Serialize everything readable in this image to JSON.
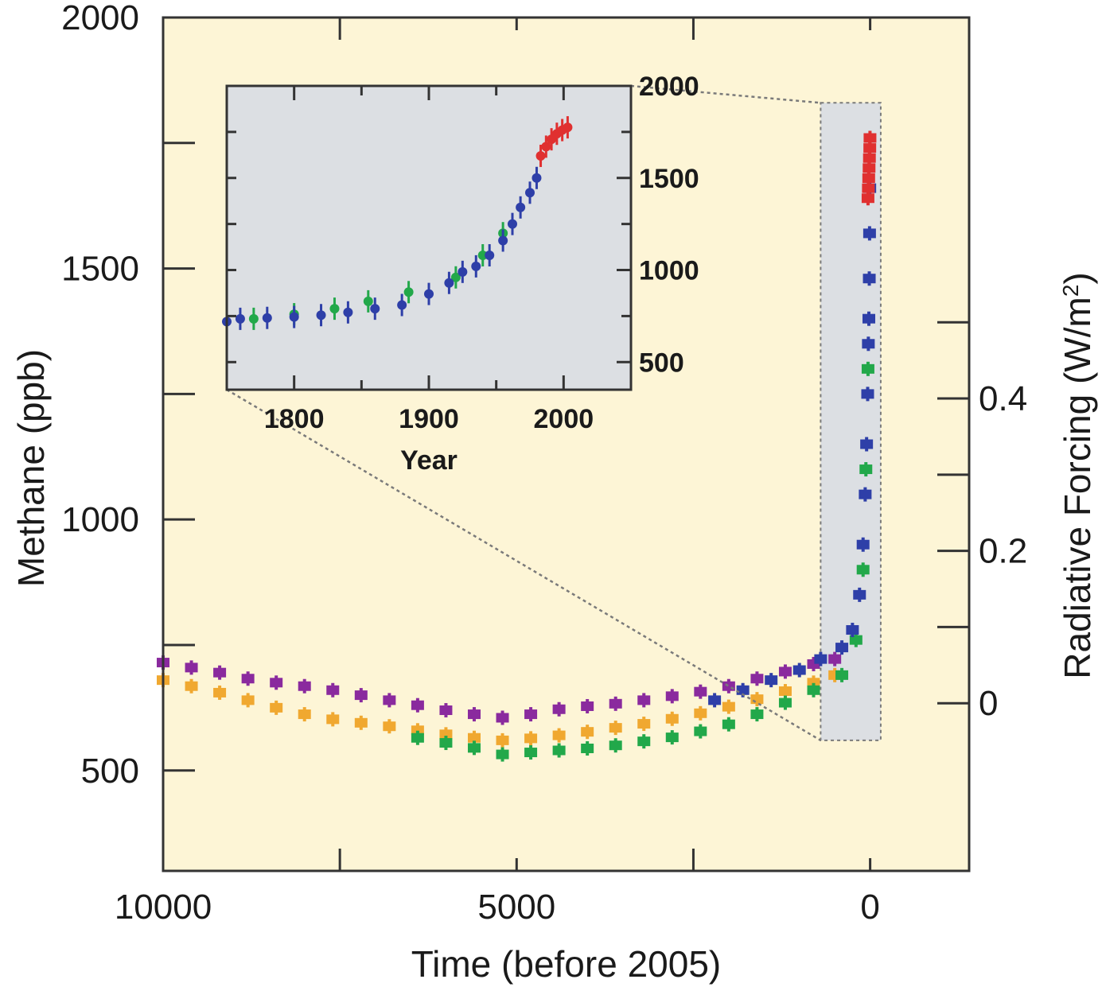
{
  "chart_data": [
    {
      "type": "scatter",
      "xlabel": "Time (before 2005)",
      "ylabel": "Methane (ppb)",
      "y2label": "Radiative Forcing (W/m²)",
      "xlim": [
        10000,
        -1400
      ],
      "ylim": [
        300,
        2000
      ],
      "y2lim": [
        -0.22,
        0.9
      ],
      "x_ticks": [
        {
          "value": 10000,
          "label": "10000"
        },
        {
          "value": 5000,
          "label": "5000"
        },
        {
          "value": 0,
          "label": "0"
        }
      ],
      "x_minor_ticks": [
        7500,
        2500
      ],
      "y_ticks": [
        {
          "value": 500,
          "label": "500"
        },
        {
          "value": 1000,
          "label": "1000"
        },
        {
          "value": 1500,
          "label": "1500"
        },
        {
          "value": 2000,
          "label": "2000"
        }
      ],
      "y_minor_ticks": [
        750,
        1250,
        1750
      ],
      "y2_ticks": [
        {
          "value": 0,
          "label": "0"
        },
        {
          "value": 0.2,
          "label": "0.2"
        },
        {
          "value": 0.4,
          "label": "0.4"
        }
      ],
      "y2_minor_ticks": [
        0.1,
        0.3,
        0.5
      ],
      "grid": false,
      "background": "#fdf5d6",
      "zoom_region": {
        "x": [
          700,
          -150
        ],
        "y": [
          560,
          1830
        ],
        "fill": "#dcdfe3"
      },
      "series": [
        {
          "color": "#8a2a9e",
          "x": [
            10000,
            9600,
            9200,
            8800,
            8400,
            8000,
            7600,
            7200,
            6800,
            6400,
            6000,
            5600,
            5200,
            4800,
            4400,
            4000,
            3600,
            3200,
            2800,
            2400,
            2000,
            1600,
            1200,
            800,
            500
          ],
          "y": [
            715,
            705,
            695,
            683,
            675,
            668,
            660,
            650,
            640,
            630,
            620,
            612,
            605,
            612,
            622,
            628,
            633,
            640,
            648,
            657,
            668,
            683,
            697,
            712,
            722
          ]
        },
        {
          "color": "#f0a830",
          "x": [
            10000,
            9600,
            9200,
            8800,
            8400,
            8000,
            7600,
            7200,
            6800,
            6400,
            6000,
            5600,
            5200,
            4800,
            4400,
            4000,
            3600,
            3200,
            2800,
            2400,
            2000,
            1600,
            1200,
            800,
            500
          ],
          "y": [
            680,
            668,
            655,
            640,
            625,
            612,
            602,
            595,
            588,
            580,
            572,
            565,
            560,
            564,
            570,
            577,
            585,
            593,
            603,
            614,
            627,
            642,
            658,
            675,
            690
          ]
        },
        {
          "color": "#22a84a",
          "x": [
            6400,
            6000,
            5600,
            5200,
            4800,
            4400,
            4000,
            3600,
            3200,
            2800,
            2400,
            2000,
            1600,
            1200,
            800,
            400,
            200,
            100,
            60,
            30
          ],
          "y": [
            565,
            555,
            545,
            532,
            536,
            540,
            544,
            550,
            558,
            566,
            578,
            592,
            612,
            635,
            660,
            690,
            760,
            900,
            1100,
            1300
          ]
        },
        {
          "color": "#2e3fa8",
          "x": [
            2200,
            1800,
            1400,
            1000,
            700,
            400,
            250,
            150,
            100,
            70,
            50,
            35,
            25,
            18,
            12,
            8,
            5
          ],
          "y": [
            640,
            660,
            680,
            700,
            722,
            745,
            780,
            850,
            950,
            1050,
            1150,
            1250,
            1350,
            1400,
            1480,
            1570,
            1660
          ]
        },
        {
          "color": "#e03030",
          "x": [
            30,
            25,
            20,
            15,
            10,
            5,
            2
          ],
          "y": [
            1640,
            1660,
            1680,
            1700,
            1720,
            1740,
            1760
          ]
        }
      ]
    },
    {
      "type": "scatter",
      "xlabel": "Year",
      "xlim": [
        1750,
        2050
      ],
      "ylim": [
        350,
        2000
      ],
      "x_ticks": [
        {
          "value": 1800,
          "label": "1800"
        },
        {
          "value": 1900,
          "label": "1900"
        },
        {
          "value": 2000,
          "label": "2000"
        }
      ],
      "x_minor_ticks": [
        1750,
        1850,
        1950,
        2050
      ],
      "y_ticks": [
        {
          "value": 500,
          "label": "500"
        },
        {
          "value": 1000,
          "label": "1000"
        },
        {
          "value": 1500,
          "label": "1500"
        },
        {
          "value": 2000,
          "label": "2000"
        }
      ],
      "y_minor_ticks": [
        750,
        1250,
        1750
      ],
      "grid": false,
      "background": "#dcdfe3",
      "series": [
        {
          "color": "#22a84a",
          "x": [
            1770,
            1800,
            1830,
            1855,
            1885,
            1920,
            1940,
            1955
          ],
          "y": [
            735,
            760,
            790,
            830,
            880,
            960,
            1080,
            1200
          ]
        },
        {
          "color": "#2e3fa8",
          "x": [
            1750,
            1760,
            1780,
            1800,
            1820,
            1840,
            1860,
            1880,
            1900,
            1915,
            1925,
            1935,
            1945,
            1955,
            1962,
            1968,
            1975,
            1980
          ],
          "y": [
            720,
            735,
            740,
            745,
            755,
            770,
            790,
            810,
            870,
            930,
            990,
            1020,
            1080,
            1160,
            1250,
            1340,
            1420,
            1500
          ]
        },
        {
          "color": "#e03030",
          "x": [
            1983,
            1987,
            1991,
            1995,
            1999,
            2003
          ],
          "y": [
            1620,
            1670,
            1710,
            1740,
            1760,
            1775
          ]
        }
      ]
    }
  ]
}
